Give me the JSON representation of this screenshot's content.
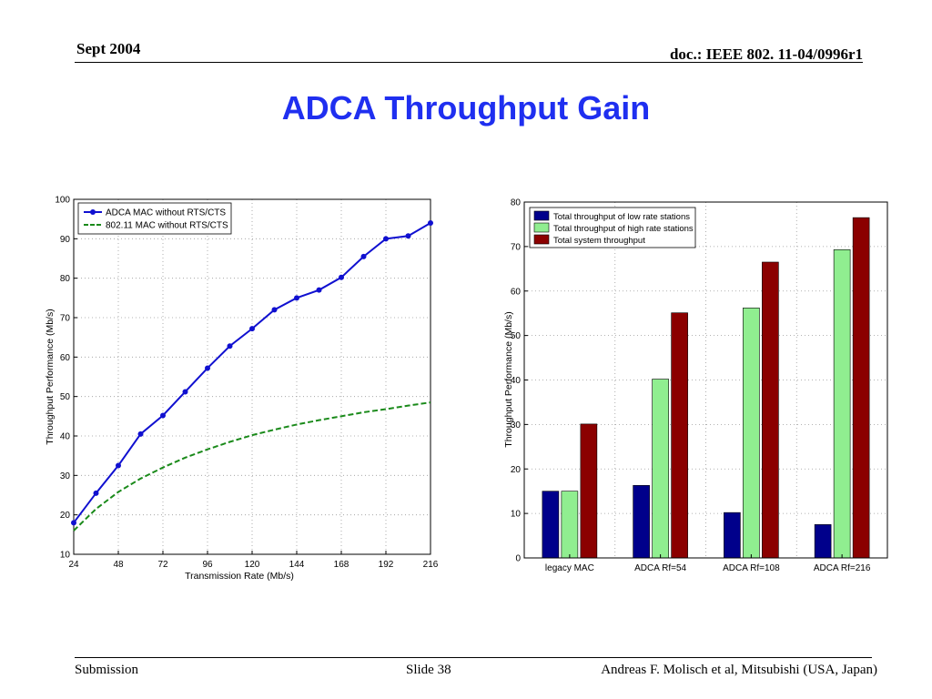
{
  "header": {
    "date": "Sept 2004",
    "doc_id": "doc.: IEEE 802. 11-04/0996r1"
  },
  "slide_title": "ADCA Throughput Gain",
  "footer": {
    "left": "Submission",
    "center": "Slide 38",
    "right": "Andreas F. Molisch et al, Mitsubishi (USA, Japan)"
  },
  "colors": {
    "title": "#1f2ff0",
    "adca_line": "#1010d0",
    "legacy_line": "#1a8a1a",
    "low_rate_bar": "#00008b",
    "high_rate_bar": "#90ee90",
    "system_bar": "#8b0000"
  },
  "chart_data": [
    {
      "type": "line",
      "xlabel": "Transmission Rate (Mb/s)",
      "ylabel": "Throughput Performance (Mb/s)",
      "xlim": [
        24,
        216
      ],
      "ylim": [
        10,
        100
      ],
      "xticks": [
        24,
        48,
        72,
        96,
        120,
        144,
        168,
        192,
        216
      ],
      "yticks": [
        10,
        20,
        30,
        40,
        50,
        60,
        70,
        80,
        90,
        100
      ],
      "grid": true,
      "legend_position": "top-left",
      "series": [
        {
          "name": "ADCA MAC without RTS/CTS",
          "style": "solid-with-markers",
          "x": [
            24,
            36,
            48,
            60,
            72,
            84,
            96,
            108,
            120,
            132,
            144,
            156,
            168,
            180,
            192,
            204,
            216
          ],
          "y": [
            18,
            25.5,
            32.5,
            40.5,
            45.2,
            51.2,
            57.2,
            62.8,
            67.2,
            72,
            75,
            77,
            80.2,
            85.5,
            90,
            90.7,
            94
          ]
        },
        {
          "name": "802.11 MAC without RTS/CTS",
          "style": "dashed",
          "x": [
            24,
            36,
            48,
            60,
            72,
            84,
            96,
            108,
            120,
            132,
            144,
            156,
            168,
            180,
            192,
            204,
            216
          ],
          "y": [
            16,
            21.5,
            25.8,
            29.2,
            32,
            34.5,
            36.6,
            38.5,
            40.2,
            41.6,
            42.9,
            44,
            45,
            46,
            46.8,
            47.7,
            48.5
          ]
        }
      ]
    },
    {
      "type": "bar",
      "ylabel": "Throughput Performance (Mb/s)",
      "xlabel": "",
      "ylim": [
        0,
        80
      ],
      "yticks": [
        0,
        10,
        20,
        30,
        40,
        50,
        60,
        70,
        80
      ],
      "grid": true,
      "legend_position": "top-left",
      "categories": [
        "legacy MAC",
        "ADCA Rf=54",
        "ADCA Rf=108",
        "ADCA Rf=216"
      ],
      "series": [
        {
          "name": "Total throughput of low rate stations",
          "values": [
            15,
            16.3,
            10.2,
            7.5
          ]
        },
        {
          "name": "Total throughput of high rate stations",
          "values": [
            15,
            40.2,
            56.2,
            69.3
          ]
        },
        {
          "name": "Total system throughput",
          "values": [
            30.1,
            55.1,
            66.5,
            76.5
          ]
        }
      ]
    }
  ]
}
